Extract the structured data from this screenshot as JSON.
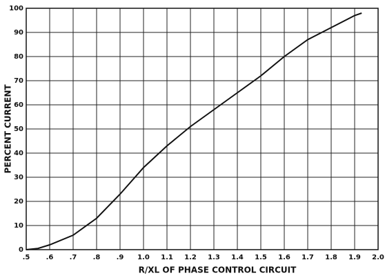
{
  "chart_data": {
    "type": "line",
    "xlabel": "R/XL OF PHASE CONTROL CIRCUIT",
    "ylabel": "PERCENT CURRENT",
    "x": [
      0.5,
      0.55,
      0.6,
      0.7,
      0.8,
      0.9,
      1.0,
      1.1,
      1.2,
      1.3,
      1.4,
      1.5,
      1.6,
      1.7,
      1.8,
      1.9,
      1.93
    ],
    "values": [
      0,
      0.5,
      2,
      6,
      13,
      23,
      34,
      43,
      51,
      58,
      65,
      72,
      80,
      87,
      92,
      97,
      98
    ],
    "color": "#111111",
    "xlim": [
      0.5,
      2.0
    ],
    "ylim": [
      0,
      100
    ],
    "xticks": [
      {
        "value": 0.5,
        "label": ".5"
      },
      {
        "value": 0.6,
        "label": ".6"
      },
      {
        "value": 0.7,
        "label": ".7"
      },
      {
        "value": 0.8,
        "label": ".8"
      },
      {
        "value": 0.9,
        "label": ".9"
      },
      {
        "value": 1.0,
        "label": "1.0"
      },
      1.1,
      1.2,
      1.3,
      1.4,
      1.5,
      1.6,
      1.7,
      1.8,
      1.9,
      {
        "value": 2.0,
        "label": "2.0"
      }
    ],
    "yticks": [
      0,
      10,
      20,
      30,
      40,
      50,
      60,
      70,
      80,
      90,
      100
    ],
    "grid": true
  }
}
